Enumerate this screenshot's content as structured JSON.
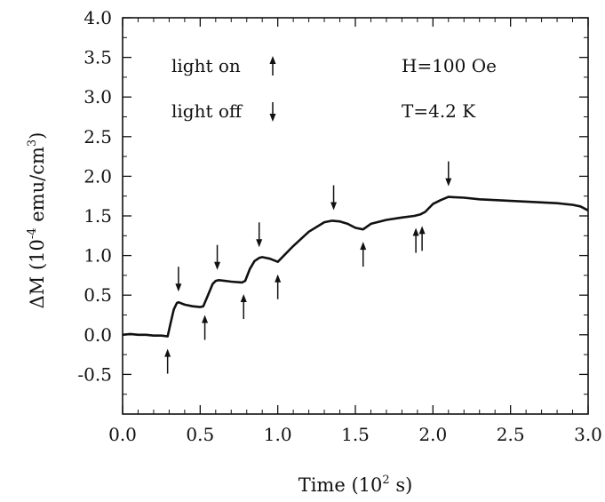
{
  "chart_data": {
    "type": "line",
    "xlabel_main": "Time (10",
    "xlabel_sup": "2",
    "xlabel_end": " s)",
    "ylabel_main": "ΔM (10",
    "ylabel_sup1": "-4",
    "ylabel_mid": " emu/cm",
    "ylabel_sup2": "3",
    "ylabel_end": ")",
    "xlim": [
      0.0,
      3.0
    ],
    "ylim": [
      -1.0,
      4.0
    ],
    "xticks": [
      {
        "value": 0.0,
        "label": "0.0"
      },
      {
        "value": 0.5,
        "label": "0.5"
      },
      {
        "value": 1.0,
        "label": "1.0"
      },
      {
        "value": 1.5,
        "label": "1.5"
      },
      {
        "value": 2.0,
        "label": "2.0"
      },
      {
        "value": 2.5,
        "label": "2.5"
      },
      {
        "value": 3.0,
        "label": "3.0"
      }
    ],
    "yticks": [
      {
        "value": -0.5,
        "label": "-0.5"
      },
      {
        "value": 0.0,
        "label": "0.0"
      },
      {
        "value": 0.5,
        "label": "0.5"
      },
      {
        "value": 1.0,
        "label": "1.0"
      },
      {
        "value": 1.5,
        "label": "1.5"
      },
      {
        "value": 2.0,
        "label": "2.0"
      },
      {
        "value": 2.5,
        "label": "2.5"
      },
      {
        "value": 3.0,
        "label": "3.0"
      },
      {
        "value": 3.5,
        "label": "3.5"
      },
      {
        "value": 4.0,
        "label": "4.0"
      }
    ],
    "annotations": {
      "light_on": "light on",
      "light_off": "light off",
      "field": "H=100 Oe",
      "temperature": "T=4.2 K"
    },
    "series": [
      {
        "x": [
          0.0,
          0.05,
          0.1,
          0.15,
          0.2,
          0.25,
          0.29,
          0.31,
          0.33,
          0.35,
          0.36,
          0.4,
          0.45,
          0.5,
          0.52,
          0.55,
          0.58,
          0.6,
          0.62,
          0.7,
          0.77,
          0.79,
          0.82,
          0.85,
          0.88,
          0.9,
          0.95,
          1.0,
          1.1,
          1.2,
          1.3,
          1.35,
          1.4,
          1.45,
          1.5,
          1.55,
          1.6,
          1.7,
          1.8,
          1.88,
          1.92,
          1.95,
          2.0,
          2.05,
          2.1,
          2.2,
          2.3,
          2.4,
          2.5,
          2.6,
          2.7,
          2.8,
          2.9,
          2.95,
          3.0
        ],
        "y": [
          0.0,
          0.01,
          0.0,
          0.0,
          -0.01,
          -0.01,
          -0.02,
          0.15,
          0.32,
          0.4,
          0.41,
          0.38,
          0.36,
          0.35,
          0.36,
          0.5,
          0.64,
          0.68,
          0.69,
          0.67,
          0.66,
          0.68,
          0.83,
          0.93,
          0.97,
          0.98,
          0.96,
          0.92,
          1.12,
          1.3,
          1.42,
          1.44,
          1.43,
          1.4,
          1.35,
          1.33,
          1.4,
          1.45,
          1.48,
          1.5,
          1.52,
          1.55,
          1.65,
          1.7,
          1.74,
          1.73,
          1.71,
          1.7,
          1.69,
          1.68,
          1.67,
          1.66,
          1.64,
          1.62,
          1.57
        ]
      }
    ],
    "light_on_times": [
      0.29,
      0.53,
      0.78,
      1.0,
      1.55,
      1.89,
      1.93
    ],
    "light_off_times": [
      0.36,
      0.61,
      0.88,
      1.36,
      2.1
    ]
  }
}
